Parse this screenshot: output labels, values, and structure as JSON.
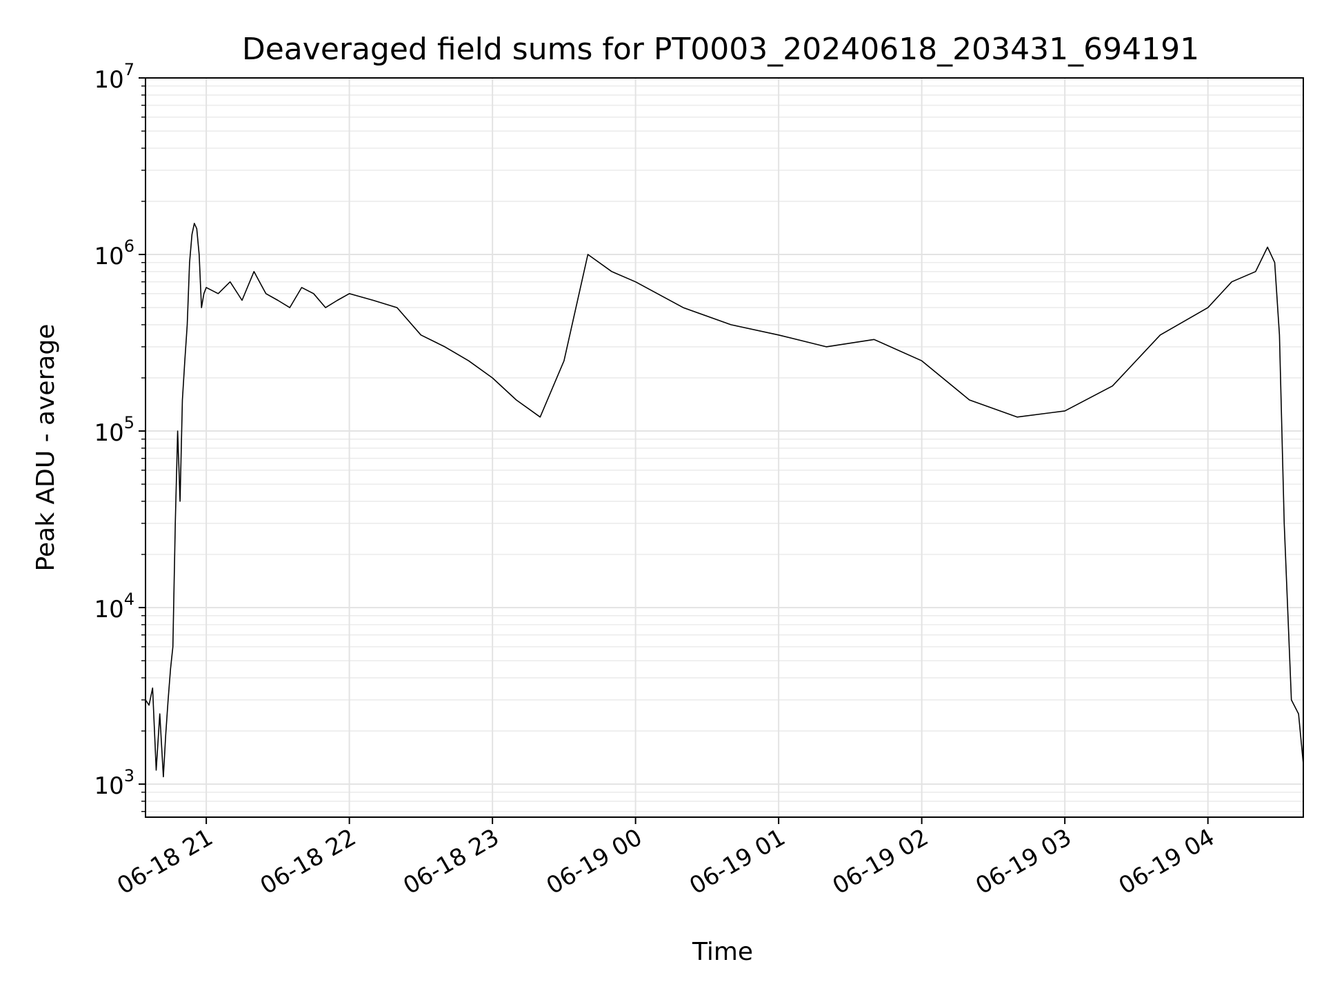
{
  "chart_data": {
    "type": "line",
    "title": "Deaveraged field sums for PT0003_20240618_203431_694191",
    "xlabel": "Time",
    "ylabel": "Peak ADU - average",
    "yscale": "log",
    "ylim": [
      650,
      10000000
    ],
    "xlim": [
      "2024-06-18T20:34:31",
      "2024-06-19T04:40:00"
    ],
    "grid": true,
    "line_color": "#000000",
    "x_ticks": [
      {
        "value": "2024-06-18T21:00:00",
        "label": "06-18 21"
      },
      {
        "value": "2024-06-18T22:00:00",
        "label": "06-18 22"
      },
      {
        "value": "2024-06-18T23:00:00",
        "label": "06-18 23"
      },
      {
        "value": "2024-06-19T00:00:00",
        "label": "06-19 00"
      },
      {
        "value": "2024-06-19T01:00:00",
        "label": "06-19 01"
      },
      {
        "value": "2024-06-19T02:00:00",
        "label": "06-19 02"
      },
      {
        "value": "2024-06-19T03:00:00",
        "label": "06-19 03"
      },
      {
        "value": "2024-06-19T04:00:00",
        "label": "06-19 04"
      }
    ],
    "y_ticks": [
      {
        "value": 1000,
        "base": "10",
        "exp": "3"
      },
      {
        "value": 10000,
        "base": "10",
        "exp": "4"
      },
      {
        "value": 100000,
        "base": "10",
        "exp": "5"
      },
      {
        "value": 1000000,
        "base": "10",
        "exp": "6"
      },
      {
        "value": 10000000,
        "base": "10",
        "exp": "7"
      }
    ],
    "series": [
      {
        "x": [
          "2024-06-18T20:34:31",
          "2024-06-18T20:36:00",
          "2024-06-18T20:37:30",
          "2024-06-18T20:39:00",
          "2024-06-18T20:40:30",
          "2024-06-18T20:42:00",
          "2024-06-18T20:43:00",
          "2024-06-18T20:44:00",
          "2024-06-18T20:45:00",
          "2024-06-18T20:46:00",
          "2024-06-18T20:47:00",
          "2024-06-18T20:48:00",
          "2024-06-18T20:49:00",
          "2024-06-18T20:50:00",
          "2024-06-18T20:51:00",
          "2024-06-18T20:52:00",
          "2024-06-18T20:53:00",
          "2024-06-18T20:54:00",
          "2024-06-18T20:55:00",
          "2024-06-18T20:56:00",
          "2024-06-18T20:57:00",
          "2024-06-18T20:58:00",
          "2024-06-18T20:59:00",
          "2024-06-18T21:00:00",
          "2024-06-18T21:05:00",
          "2024-06-18T21:10:00",
          "2024-06-18T21:15:00",
          "2024-06-18T21:20:00",
          "2024-06-18T21:25:00",
          "2024-06-18T21:30:00",
          "2024-06-18T21:35:00",
          "2024-06-18T21:40:00",
          "2024-06-18T21:45:00",
          "2024-06-18T21:50:00",
          "2024-06-18T21:55:00",
          "2024-06-18T22:00:00",
          "2024-06-18T22:10:00",
          "2024-06-18T22:20:00",
          "2024-06-18T22:30:00",
          "2024-06-18T22:40:00",
          "2024-06-18T22:50:00",
          "2024-06-18T23:00:00",
          "2024-06-18T23:10:00",
          "2024-06-18T23:20:00",
          "2024-06-18T23:30:00",
          "2024-06-18T23:40:00",
          "2024-06-18T23:50:00",
          "2024-06-19T00:00:00",
          "2024-06-19T00:20:00",
          "2024-06-19T00:40:00",
          "2024-06-19T01:00:00",
          "2024-06-19T01:20:00",
          "2024-06-19T01:40:00",
          "2024-06-19T02:00:00",
          "2024-06-19T02:20:00",
          "2024-06-19T02:40:00",
          "2024-06-19T03:00:00",
          "2024-06-19T03:20:00",
          "2024-06-19T03:40:00",
          "2024-06-19T04:00:00",
          "2024-06-19T04:10:00",
          "2024-06-19T04:20:00",
          "2024-06-19T04:25:00",
          "2024-06-19T04:28:00",
          "2024-06-19T04:30:00",
          "2024-06-19T04:32:00",
          "2024-06-19T04:35:00",
          "2024-06-19T04:38:00",
          "2024-06-19T04:40:00"
        ],
        "y": [
          3000,
          2800,
          3500,
          1200,
          2500,
          1100,
          1900,
          3000,
          4500,
          6000,
          30000,
          100000,
          40000,
          150000,
          250000,
          400000,
          900000,
          1300000,
          1500000,
          1400000,
          1000000,
          500000,
          600000,
          650000,
          600000,
          700000,
          550000,
          800000,
          600000,
          550000,
          500000,
          650000,
          600000,
          500000,
          550000,
          600000,
          550000,
          500000,
          350000,
          300000,
          250000,
          200000,
          150000,
          120000,
          250000,
          1000000,
          800000,
          700000,
          500000,
          400000,
          350000,
          300000,
          330000,
          250000,
          150000,
          120000,
          130000,
          180000,
          350000,
          500000,
          700000,
          800000,
          1100000,
          900000,
          350000,
          30000,
          3000,
          2500,
          1300
        ]
      }
    ]
  }
}
